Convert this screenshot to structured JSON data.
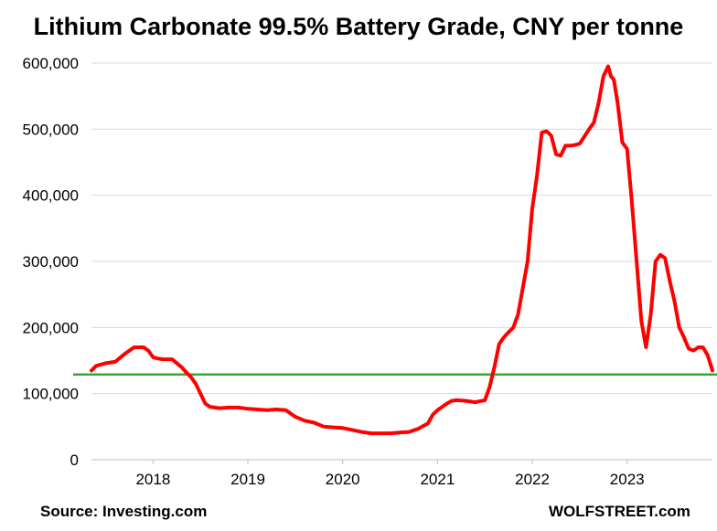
{
  "chart_data": {
    "type": "line",
    "title": "Lithium Carbonate 99.5% Battery Grade, CNY per tonne",
    "xlabel": "",
    "ylabel": "",
    "ylim": [
      0,
      600000
    ],
    "xlim": [
      2017.35,
      2023.9
    ],
    "y_ticks": [
      0,
      100000,
      200000,
      300000,
      400000,
      500000,
      600000
    ],
    "y_tick_labels": [
      "0",
      "100,000",
      "200,000",
      "300,000",
      "400,000",
      "500,000",
      "600,000"
    ],
    "x_ticks": [
      2018,
      2019,
      2020,
      2021,
      2022,
      2023
    ],
    "x_tick_labels": [
      "2018",
      "2019",
      "2020",
      "2021",
      "2022",
      "2023"
    ],
    "grid": "horizontal",
    "series": [
      {
        "color": "#ff0000",
        "x": [
          2017.35,
          2017.4,
          2017.5,
          2017.6,
          2017.7,
          2017.75,
          2017.8,
          2017.9,
          2017.95,
          2018.0,
          2018.05,
          2018.1,
          2018.2,
          2018.3,
          2018.35,
          2018.4,
          2018.45,
          2018.5,
          2018.55,
          2018.6,
          2018.7,
          2018.8,
          2018.9,
          2019.0,
          2019.1,
          2019.2,
          2019.3,
          2019.4,
          2019.5,
          2019.55,
          2019.6,
          2019.7,
          2019.8,
          2019.9,
          2020.0,
          2020.1,
          2020.2,
          2020.3,
          2020.4,
          2020.5,
          2020.6,
          2020.7,
          2020.8,
          2020.9,
          2020.95,
          2021.0,
          2021.05,
          2021.1,
          2021.15,
          2021.2,
          2021.3,
          2021.4,
          2021.5,
          2021.55,
          2021.6,
          2021.65,
          2021.7,
          2021.75,
          2021.8,
          2021.85,
          2021.9,
          2021.95,
          2022.0,
          2022.05,
          2022.1,
          2022.15,
          2022.2,
          2022.25,
          2022.3,
          2022.35,
          2022.4,
          2022.45,
          2022.5,
          2022.6,
          2022.65,
          2022.7,
          2022.75,
          2022.8,
          2022.83,
          2022.86,
          2022.9,
          2022.95,
          2023.0,
          2023.05,
          2023.1,
          2023.15,
          2023.2,
          2023.25,
          2023.3,
          2023.35,
          2023.4,
          2023.45,
          2023.5,
          2023.55,
          2023.6,
          2023.65,
          2023.7,
          2023.75,
          2023.8,
          2023.85,
          2023.9
        ],
        "y": [
          135000,
          142000,
          146000,
          148000,
          160000,
          165000,
          170000,
          170000,
          165000,
          155000,
          153000,
          152000,
          152000,
          140000,
          132000,
          125000,
          115000,
          100000,
          85000,
          80000,
          78000,
          79000,
          79000,
          77000,
          76000,
          75000,
          76000,
          75000,
          65000,
          62000,
          59000,
          56000,
          50000,
          49000,
          48000,
          45000,
          42000,
          40000,
          40000,
          40000,
          41000,
          42000,
          47000,
          55000,
          68000,
          75000,
          80000,
          85000,
          89000,
          90000,
          89000,
          87000,
          90000,
          110000,
          140000,
          175000,
          185000,
          193000,
          200000,
          220000,
          260000,
          300000,
          380000,
          430000,
          495000,
          497000,
          490000,
          462000,
          460000,
          475000,
          475000,
          476000,
          478000,
          500000,
          510000,
          540000,
          580000,
          595000,
          580000,
          575000,
          540000,
          480000,
          470000,
          390000,
          300000,
          210000,
          170000,
          220000,
          300000,
          310000,
          305000,
          270000,
          240000,
          200000,
          185000,
          168000,
          165000,
          170000,
          170000,
          158000,
          135000
        ]
      }
    ],
    "reference_line": {
      "y": 129000,
      "color": "#33aa33"
    }
  },
  "footer": {
    "source": "Source:  Investing.com",
    "brand": "WOLFSTREET.com"
  }
}
